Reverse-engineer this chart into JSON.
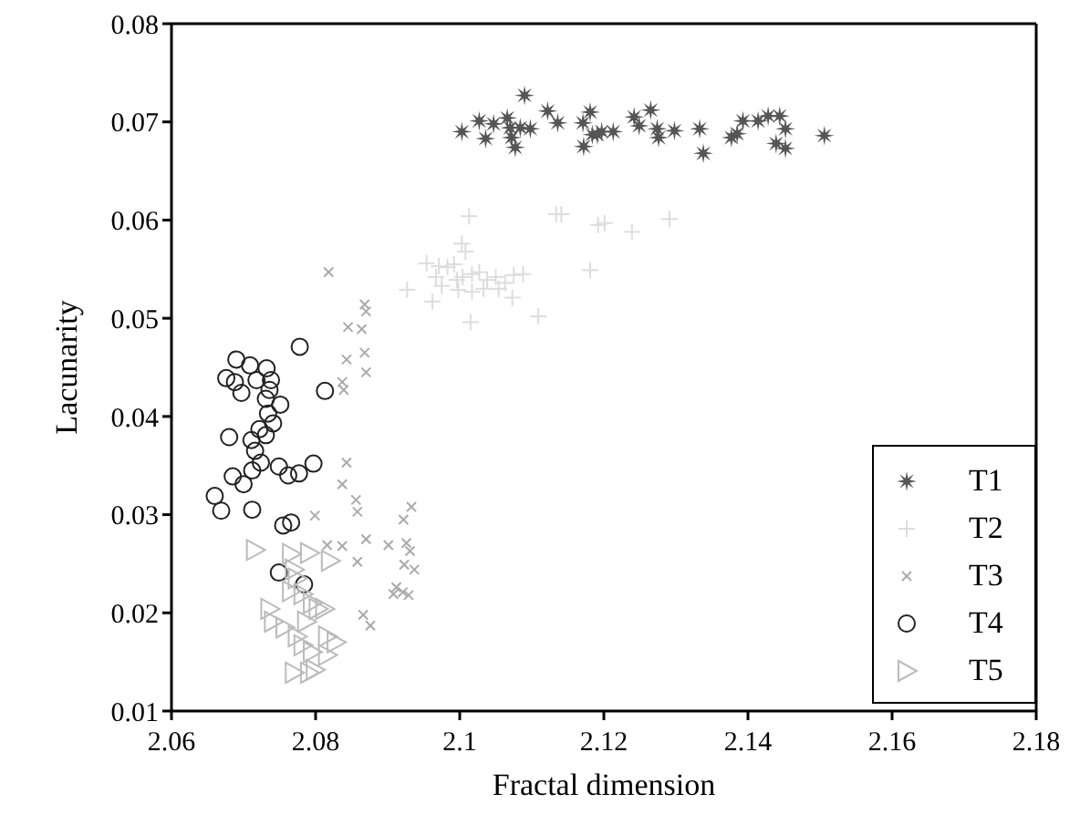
{
  "chart_data": {
    "type": "scatter",
    "xlabel": "Fractal dimension",
    "ylabel": "Lacunarity",
    "xlim": [
      2.06,
      2.18
    ],
    "ylim": [
      0.01,
      0.08
    ],
    "xticks": [
      2.06,
      2.08,
      2.1,
      2.12,
      2.14,
      2.16,
      2.18
    ],
    "yticks": [
      0.01,
      0.02,
      0.03,
      0.04,
      0.05,
      0.06,
      0.07,
      0.08
    ],
    "grid": false,
    "legend": "bottom right",
    "series": [
      {
        "name": "T1",
        "color": "#555555",
        "marker": "star",
        "x": [
          2.1003,
          2.1027,
          2.1036,
          2.1047,
          2.1066,
          2.107,
          2.1072,
          2.1077,
          2.1084,
          2.109,
          2.1098,
          2.1122,
          2.1136,
          2.1171,
          2.1172,
          2.1181,
          2.1184,
          2.1191,
          2.1197,
          2.1213,
          2.1242,
          2.1249,
          2.1265,
          2.1274,
          2.1276,
          2.1298,
          2.1333,
          2.1338,
          2.1377,
          2.1385,
          2.1393,
          2.1414,
          2.1428,
          2.1444,
          2.1452,
          2.1439,
          2.1452,
          2.1506
        ],
        "values": [
          0.069,
          0.0701,
          0.0683,
          0.0698,
          0.0704,
          0.0694,
          0.0684,
          0.0674,
          0.0694,
          0.0727,
          0.0693,
          0.0711,
          0.0699,
          0.0699,
          0.0675,
          0.071,
          0.0687,
          0.0687,
          0.069,
          0.069,
          0.0705,
          0.0696,
          0.0712,
          0.0693,
          0.0684,
          0.0691,
          0.0693,
          0.0668,
          0.0684,
          0.0688,
          0.0701,
          0.0701,
          0.0706,
          0.0706,
          0.0693,
          0.0678,
          0.0673,
          0.0686
        ]
      },
      {
        "name": "T2",
        "color": "#dddddd",
        "marker": "plus",
        "x": [
          2.1013,
          2.1003,
          2.1008,
          2.1134,
          2.1141,
          2.1192,
          2.1201,
          2.1239,
          2.1291,
          2.1181,
          2.1109,
          2.1015,
          2.0954,
          2.0971,
          2.0983,
          2.0992,
          2.0967,
          2.0975,
          2.0996,
          2.1004,
          2.1017,
          2.1027,
          2.1038,
          2.105,
          2.1063,
          2.1075,
          2.1088,
          2.0927,
          2.0962,
          2.0998,
          2.1017,
          2.1033,
          2.1054,
          2.1073
        ],
        "values": [
          0.0604,
          0.0576,
          0.0568,
          0.0606,
          0.0606,
          0.0595,
          0.0597,
          0.0588,
          0.0601,
          0.0549,
          0.0502,
          0.0496,
          0.0556,
          0.0553,
          0.0552,
          0.0555,
          0.0542,
          0.0533,
          0.0539,
          0.0542,
          0.0545,
          0.0547,
          0.0539,
          0.0542,
          0.0536,
          0.0544,
          0.0545,
          0.0529,
          0.0517,
          0.0529,
          0.0527,
          0.053,
          0.053,
          0.0521
        ]
      },
      {
        "name": "T3",
        "color": "#aaaaaa",
        "marker": "cross",
        "x": [
          2.0818,
          2.0868,
          2.087,
          2.0845,
          2.0864,
          2.0843,
          2.0868,
          2.087,
          2.0837,
          2.0839,
          2.0843,
          2.0837,
          2.0856,
          2.0858,
          2.087,
          2.0799,
          2.0816,
          2.0837,
          2.0858,
          2.0901,
          2.0922,
          2.0933,
          2.0926,
          2.0931,
          2.0923,
          2.0937,
          2.0912,
          2.0921,
          2.0908,
          2.0929,
          2.0866,
          2.0876
        ],
        "values": [
          0.0547,
          0.0514,
          0.0507,
          0.0491,
          0.0489,
          0.0458,
          0.0465,
          0.0445,
          0.0435,
          0.0427,
          0.0353,
          0.0331,
          0.0315,
          0.0303,
          0.0275,
          0.0299,
          0.0269,
          0.0268,
          0.0252,
          0.0269,
          0.0295,
          0.0308,
          0.0271,
          0.0263,
          0.0249,
          0.0244,
          0.0226,
          0.0221,
          0.0219,
          0.0218,
          0.0198,
          0.0187
        ]
      },
      {
        "name": "T4",
        "color": "#222222",
        "marker": "circle",
        "x": [
          2.069,
          2.0709,
          2.0732,
          2.0676,
          2.0688,
          2.0718,
          2.0697,
          2.0738,
          2.0736,
          2.0731,
          2.0751,
          2.0813,
          2.0778,
          2.068,
          2.0711,
          2.0731,
          2.0741,
          2.0734,
          2.0722,
          2.0716,
          2.0724,
          2.0712,
          2.0685,
          2.07,
          2.0749,
          2.0762,
          2.0777,
          2.0797,
          2.066,
          2.0669,
          2.0712,
          2.0755,
          2.0766,
          2.0749,
          2.0784
        ],
        "values": [
          0.0458,
          0.0452,
          0.0449,
          0.0439,
          0.0435,
          0.0437,
          0.0424,
          0.0437,
          0.0427,
          0.0418,
          0.0412,
          0.0426,
          0.0471,
          0.0379,
          0.0376,
          0.0381,
          0.0393,
          0.0403,
          0.0387,
          0.0365,
          0.0353,
          0.0345,
          0.0339,
          0.0331,
          0.0349,
          0.034,
          0.0342,
          0.0352,
          0.0319,
          0.0304,
          0.0305,
          0.0289,
          0.0292,
          0.0241,
          0.0229
        ]
      },
      {
        "name": "T5",
        "color": "#bbbbbb",
        "marker": "triangle",
        "x": [
          2.0716,
          2.0766,
          2.0791,
          2.082,
          2.077,
          2.0774,
          2.0766,
          2.0782,
          2.0795,
          2.0803,
          2.0812,
          2.0736,
          2.0741,
          2.0757,
          2.0774,
          2.0787,
          2.0816,
          2.0828,
          2.0782,
          2.0795,
          2.0816,
          2.077,
          2.0791,
          2.0799
        ],
        "values": [
          0.0264,
          0.026,
          0.0261,
          0.0253,
          0.0244,
          0.0235,
          0.0222,
          0.0219,
          0.021,
          0.0204,
          0.0204,
          0.0204,
          0.0191,
          0.0185,
          0.0176,
          0.0191,
          0.0176,
          0.017,
          0.0167,
          0.016,
          0.0157,
          0.0139,
          0.0139,
          0.0142
        ]
      }
    ]
  }
}
